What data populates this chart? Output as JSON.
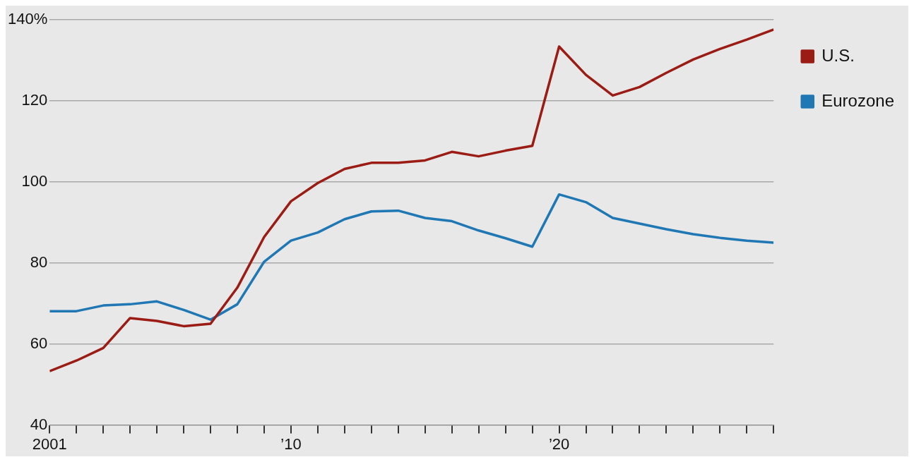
{
  "chart_data": {
    "type": "line",
    "x": [
      2001,
      2002,
      2003,
      2004,
      2005,
      2006,
      2007,
      2008,
      2009,
      2010,
      2011,
      2012,
      2013,
      2014,
      2015,
      2016,
      2017,
      2018,
      2019,
      2020,
      2021,
      2022,
      2023,
      2024,
      2025,
      2026,
      2027,
      2028
    ],
    "series": [
      {
        "name": "U.S.",
        "color": "#9b1c14",
        "values": [
          53.3,
          55.9,
          59,
          66.4,
          65.7,
          64.4,
          65,
          73.9,
          86.4,
          95.2,
          99.7,
          103.2,
          104.7,
          104.7,
          105.3,
          107.4,
          106.3,
          107.7,
          108.9,
          133.4,
          126.4,
          121.3,
          123.4,
          126.9,
          130.2,
          132.8,
          135.1,
          137.6
        ]
      },
      {
        "name": "Eurozone",
        "color": "#1f78b4",
        "values": [
          68.1,
          68.1,
          69.5,
          69.8,
          70.5,
          68.4,
          66,
          69.8,
          80.3,
          85.5,
          87.5,
          90.8,
          92.7,
          92.9,
          91.1,
          90.3,
          88,
          86.1,
          84,
          96.9,
          95,
          91.1,
          89.7,
          88.3,
          87.1,
          86.2,
          85.5,
          85
        ]
      }
    ],
    "xlim": [
      2001,
      2028
    ],
    "xticks": [
      {
        "value": 2001,
        "label": "2001"
      },
      {
        "value": 2002,
        "label": null
      },
      {
        "value": 2003,
        "label": null
      },
      {
        "value": 2004,
        "label": null
      },
      {
        "value": 2005,
        "label": null
      },
      {
        "value": 2006,
        "label": null
      },
      {
        "value": 2007,
        "label": null
      },
      {
        "value": 2008,
        "label": null
      },
      {
        "value": 2009,
        "label": null
      },
      {
        "value": 2010,
        "label": "’10"
      },
      {
        "value": 2011,
        "label": null
      },
      {
        "value": 2012,
        "label": null
      },
      {
        "value": 2013,
        "label": null
      },
      {
        "value": 2014,
        "label": null
      },
      {
        "value": 2015,
        "label": null
      },
      {
        "value": 2016,
        "label": null
      },
      {
        "value": 2017,
        "label": null
      },
      {
        "value": 2018,
        "label": null
      },
      {
        "value": 2019,
        "label": null
      },
      {
        "value": 2020,
        "label": "’20"
      },
      {
        "value": 2021,
        "label": null
      },
      {
        "value": 2022,
        "label": null
      },
      {
        "value": 2023,
        "label": null
      },
      {
        "value": 2024,
        "label": null
      },
      {
        "value": 2025,
        "label": null
      },
      {
        "value": 2026,
        "label": null
      },
      {
        "value": 2027,
        "label": null
      },
      {
        "value": 2028,
        "label": null
      }
    ],
    "ylim": [
      40,
      140
    ],
    "yticks": [
      40,
      60,
      80,
      100,
      120,
      {
        "value": 140,
        "label": "140%"
      }
    ],
    "grid": "y",
    "legend": "right",
    "marker": "none",
    "line_style": "solid"
  }
}
